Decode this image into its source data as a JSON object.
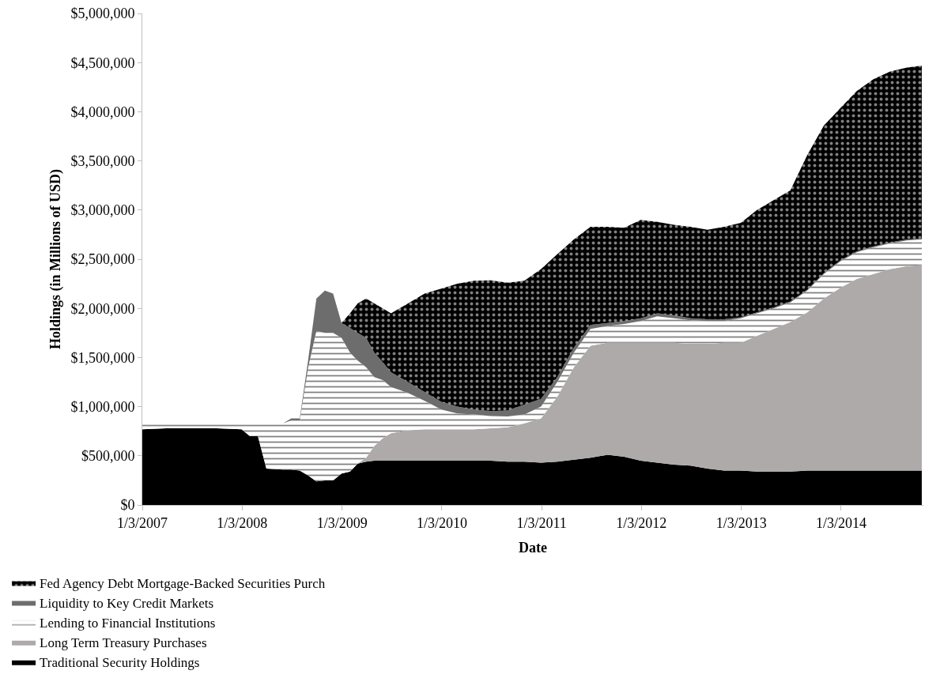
{
  "chart_data": {
    "type": "area",
    "stacked": true,
    "xlabel": "Date",
    "ylabel": "Holdings (in Millions of USD)",
    "x": [
      "2007-01-03",
      "2007-04",
      "2007-07",
      "2007-10",
      "2008-01",
      "2008-02",
      "2008-03",
      "2008-04",
      "2008-06",
      "2008-07",
      "2008-08",
      "2008-09",
      "2008-10",
      "2008-11",
      "2008-12",
      "2009-01",
      "2009-02",
      "2009-03",
      "2009-04",
      "2009-05",
      "2009-06",
      "2009-07",
      "2009-09",
      "2009-11",
      "2010-01",
      "2010-03",
      "2010-05",
      "2010-07",
      "2010-09",
      "2010-11",
      "2011-01",
      "2011-03",
      "2011-05",
      "2011-07",
      "2011-09",
      "2011-11",
      "2012-01",
      "2012-03",
      "2012-05",
      "2012-07",
      "2012-09",
      "2012-11",
      "2013-01",
      "2013-03",
      "2013-05",
      "2013-07",
      "2013-09",
      "2013-11",
      "2014-01",
      "2014-03",
      "2014-05",
      "2014-07",
      "2014-09",
      "2014-10-25"
    ],
    "series": [
      {
        "name": "Traditional Security Holdings",
        "color": "#000000",
        "values": [
          770000,
          780000,
          780000,
          780000,
          770000,
          700000,
          700000,
          370000,
          360000,
          360000,
          350000,
          300000,
          240000,
          250000,
          250000,
          320000,
          340000,
          420000,
          440000,
          450000,
          450000,
          450000,
          450000,
          450000,
          450000,
          450000,
          450000,
          450000,
          440000,
          440000,
          430000,
          440000,
          460000,
          480000,
          510000,
          490000,
          450000,
          430000,
          410000,
          400000,
          370000,
          350000,
          350000,
          340000,
          340000,
          340000,
          350000,
          350000,
          350000,
          350000,
          350000,
          350000,
          350000,
          350000
        ]
      },
      {
        "name": "Long Term Treasury Purchases",
        "color": "#aeaaaa",
        "values": [
          0,
          0,
          0,
          0,
          0,
          0,
          0,
          0,
          0,
          0,
          0,
          0,
          0,
          0,
          0,
          0,
          0,
          0,
          40000,
          150000,
          230000,
          280000,
          310000,
          320000,
          320000,
          320000,
          320000,
          330000,
          350000,
          390000,
          450000,
          660000,
          940000,
          1140000,
          1140000,
          1160000,
          1200000,
          1220000,
          1240000,
          1240000,
          1270000,
          1300000,
          1300000,
          1380000,
          1450000,
          1520000,
          1610000,
          1750000,
          1860000,
          1950000,
          2000000,
          2050000,
          2080000,
          2090000
        ]
      },
      {
        "name": "Lending to Financial Institutions",
        "color": "#ffffff",
        "values": [
          60000,
          50000,
          50000,
          50000,
          60000,
          130000,
          130000,
          460000,
          470000,
          500000,
          510000,
          1100000,
          1530000,
          1500000,
          1500000,
          1380000,
          1210000,
          1050000,
          920000,
          700000,
          590000,
          470000,
          380000,
          290000,
          200000,
          160000,
          150000,
          125000,
          110000,
          90000,
          120000,
          150000,
          150000,
          170000,
          170000,
          190000,
          220000,
          270000,
          250000,
          240000,
          230000,
          220000,
          250000,
          230000,
          210000,
          200000,
          220000,
          250000,
          270000,
          270000,
          270000,
          260000,
          260000,
          260000
        ]
      },
      {
        "name": "Liquidity to Key Credit Markets",
        "color": "#6d6d6d",
        "values": [
          0,
          0,
          0,
          0,
          0,
          0,
          0,
          0,
          0,
          20000,
          20000,
          80000,
          330000,
          430000,
          400000,
          150000,
          250000,
          280000,
          300000,
          250000,
          180000,
          150000,
          110000,
          90000,
          80000,
          70000,
          50000,
          50000,
          60000,
          100000,
          80000,
          50000,
          50000,
          40000,
          30000,
          30000,
          30000,
          30000,
          30000,
          20000,
          20000,
          20000,
          10000,
          10000,
          10000,
          10000,
          10000,
          10000,
          10000,
          10000,
          10000,
          10000,
          10000,
          10000
        ]
      },
      {
        "name": "Fed Agency Debt Mortgage-Backed Securities Purch",
        "color": "#000000",
        "values": [
          0,
          0,
          0,
          0,
          0,
          0,
          0,
          0,
          0,
          0,
          0,
          0,
          0,
          0,
          0,
          0,
          150000,
          300000,
          400000,
          500000,
          550000,
          600000,
          800000,
          1000000,
          1150000,
          1250000,
          1310000,
          1330000,
          1300000,
          1260000,
          1320000,
          1250000,
          1100000,
          1000000,
          980000,
          950000,
          1000000,
          930000,
          920000,
          930000,
          910000,
          940000,
          960000,
          1040000,
          1090000,
          1130000,
          1370000,
          1500000,
          1550000,
          1630000,
          1700000,
          1740000,
          1750000,
          1760000
        ]
      }
    ],
    "xlim": [
      "2007-01-03",
      "2014-10-31"
    ],
    "xticks": [
      {
        "value": "2007-01-03",
        "label": "1/3/2007"
      },
      {
        "value": "2008-01-03",
        "label": "1/3/2008"
      },
      {
        "value": "2009-01-03",
        "label": "1/3/2009"
      },
      {
        "value": "2010-01-03",
        "label": "1/3/2010"
      },
      {
        "value": "2011-01-03",
        "label": "1/3/2011"
      },
      {
        "value": "2012-01-03",
        "label": "1/3/2012"
      },
      {
        "value": "2013-01-03",
        "label": "1/3/2013"
      },
      {
        "value": "2014-01-03",
        "label": "1/3/2014"
      }
    ],
    "ylim": [
      0,
      5000000
    ],
    "yticks": [
      {
        "value": 0,
        "label": "$0"
      },
      {
        "value": 500000,
        "label": "$500,000"
      },
      {
        "value": 1000000,
        "label": "$1,000,000"
      },
      {
        "value": 1500000,
        "label": "$1,500,000"
      },
      {
        "value": 2000000,
        "label": "$2,000,000"
      },
      {
        "value": 2500000,
        "label": "$2,500,000"
      },
      {
        "value": 3000000,
        "label": "$3,000,000"
      },
      {
        "value": 3500000,
        "label": "$3,500,000"
      },
      {
        "value": 4000000,
        "label": "$4,000,000"
      },
      {
        "value": 4500000,
        "label": "$4,500,000"
      },
      {
        "value": 5000000,
        "label": "$5,000,000"
      }
    ],
    "legend": "bottom"
  }
}
